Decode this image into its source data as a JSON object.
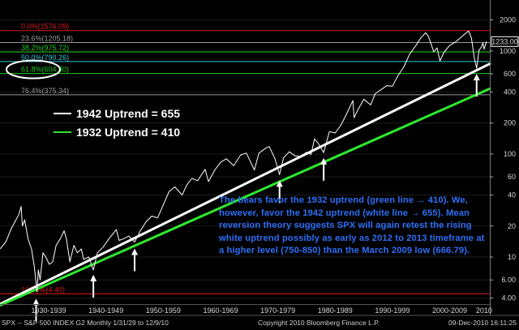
{
  "chart_data": {
    "type": "line",
    "yscale": "log",
    "ylim": [
      3.5,
      2700
    ],
    "xlim": [
      1926,
      2011.5
    ],
    "yticks": [
      {
        "value": 2000,
        "label": "2000"
      },
      {
        "value": 1000,
        "label": "1000"
      },
      {
        "value": 600,
        "label": "600"
      },
      {
        "value": 400,
        "label": "400"
      },
      {
        "value": 200,
        "label": "200"
      },
      {
        "value": 100,
        "label": "100"
      },
      {
        "value": 60,
        "label": "60"
      },
      {
        "value": 40,
        "label": "40"
      },
      {
        "value": 20,
        "label": "20"
      },
      {
        "value": 10,
        "label": "10"
      },
      {
        "value": 6,
        "label": "6.00"
      },
      {
        "value": 4,
        "label": "4.00"
      }
    ],
    "xticks": [
      {
        "x": 1934.5,
        "label": "1930-1939"
      },
      {
        "x": 1944.5,
        "label": "1940-1949"
      },
      {
        "x": 1954.5,
        "label": "1950-1959"
      },
      {
        "x": 1964.5,
        "label": "1960-1969"
      },
      {
        "x": 1974.5,
        "label": "1970-1979"
      },
      {
        "x": 1984.5,
        "label": "1980-1989"
      },
      {
        "x": 1994.5,
        "label": "1990-1999"
      },
      {
        "x": 2004.5,
        "label": "2000-2009"
      },
      {
        "x": 2010.5,
        "label": "2010"
      }
    ],
    "last_price": {
      "value": 1233,
      "label": "1233.00"
    },
    "fib_levels": [
      {
        "label": "0.0%(1576.09)",
        "value": 1576.09,
        "color": "#e01818"
      },
      {
        "label": "23.6%(1205.18)",
        "value": 1205.18,
        "color": "#9a9a9a"
      },
      {
        "label": "38.2%(975.72)",
        "value": 975.72,
        "color": "#1ec81e"
      },
      {
        "label": "50.0%(790.26)",
        "value": 790.26,
        "color": "#36c8d8"
      },
      {
        "label": "61.8%(604.80)",
        "value": 604.8,
        "color": "#1ec81e"
      },
      {
        "label": "76.4%(375.34)",
        "value": 375.34,
        "color": "#9a9a9a"
      },
      {
        "label": "100.0%(4.40)",
        "value": 4.4,
        "color": "#e01818"
      }
    ],
    "trendlines": [
      {
        "name": "1942 Uptrend = 655",
        "color": "#ffffff",
        "start": {
          "x": 1926,
          "y": 3.5
        },
        "end": {
          "x": 2011.5,
          "y": 750
        }
      },
      {
        "name": "1932 Uptrend = 410",
        "color": "#2ee82e",
        "start": {
          "x": 1926,
          "y": 3.4
        },
        "end": {
          "x": 2011.5,
          "y": 430
        }
      }
    ],
    "arrows_at": [
      {
        "x": 1932.3,
        "y": 4.4
      },
      {
        "x": 1942.3,
        "y": 7.5
      },
      {
        "x": 1949.5,
        "y": 13.5
      },
      {
        "x": 1974.8,
        "y": 62
      },
      {
        "x": 1982.5,
        "y": 102
      },
      {
        "x": 2009.2,
        "y": 667
      }
    ],
    "series": [
      {
        "values": [
          [
            1926,
            12
          ],
          [
            1927,
            14
          ],
          [
            1928,
            19
          ],
          [
            1929.3,
            26
          ],
          [
            1929.7,
            31
          ],
          [
            1929.9,
            20
          ],
          [
            1930.3,
            23
          ],
          [
            1930.9,
            15
          ],
          [
            1931.5,
            12
          ],
          [
            1932,
            8
          ],
          [
            1932.45,
            4.6
          ],
          [
            1932.7,
            7.5
          ],
          [
            1933,
            6
          ],
          [
            1933.5,
            11
          ],
          [
            1934,
            10
          ],
          [
            1934.6,
            8.5
          ],
          [
            1935.2,
            9
          ],
          [
            1935.8,
            13
          ],
          [
            1936.5,
            15
          ],
          [
            1937.2,
            18
          ],
          [
            1937.6,
            15
          ],
          [
            1938.2,
            9
          ],
          [
            1938.9,
            13
          ],
          [
            1939.5,
            11
          ],
          [
            1940.2,
            12
          ],
          [
            1940.6,
            9.5
          ],
          [
            1941.5,
            10
          ],
          [
            1942.3,
            7.5
          ],
          [
            1943,
            11
          ],
          [
            1944,
            12.5
          ],
          [
            1945,
            15
          ],
          [
            1946.3,
            18.5
          ],
          [
            1946.8,
            14.5
          ],
          [
            1947.5,
            15
          ],
          [
            1948.5,
            16
          ],
          [
            1949.5,
            14
          ],
          [
            1950.5,
            18
          ],
          [
            1951.5,
            22
          ],
          [
            1952.5,
            25
          ],
          [
            1953.5,
            24
          ],
          [
            1954.5,
            32
          ],
          [
            1955.5,
            43
          ],
          [
            1956.5,
            48
          ],
          [
            1957.8,
            40
          ],
          [
            1958.6,
            50
          ],
          [
            1959.5,
            58
          ],
          [
            1960.5,
            55
          ],
          [
            1961.8,
            71
          ],
          [
            1962.4,
            54
          ],
          [
            1963.5,
            70
          ],
          [
            1964.5,
            83
          ],
          [
            1965.5,
            90
          ],
          [
            1966.8,
            77
          ],
          [
            1968,
            98
          ],
          [
            1969,
            102
          ],
          [
            1970.4,
            70
          ],
          [
            1971.2,
            102
          ],
          [
            1972.5,
            115
          ],
          [
            1973,
            118
          ],
          [
            1974,
            90
          ],
          [
            1974.8,
            63
          ],
          [
            1975.5,
            92
          ],
          [
            1976.5,
            105
          ],
          [
            1977.5,
            96
          ],
          [
            1978.5,
            95
          ],
          [
            1979.5,
            104
          ],
          [
            1980.3,
            99
          ],
          [
            1980.9,
            140
          ],
          [
            1981.5,
            128
          ],
          [
            1982.5,
            103
          ],
          [
            1983.5,
            165
          ],
          [
            1984.5,
            160
          ],
          [
            1985.5,
            190
          ],
          [
            1986.5,
            245
          ],
          [
            1987.6,
            330
          ],
          [
            1987.8,
            225
          ],
          [
            1988.5,
            270
          ],
          [
            1989.5,
            340
          ],
          [
            1990.7,
            300
          ],
          [
            1991.5,
            385
          ],
          [
            1992.5,
            420
          ],
          [
            1993.5,
            460
          ],
          [
            1994.5,
            455
          ],
          [
            1995.5,
            580
          ],
          [
            1996.5,
            700
          ],
          [
            1997.5,
            930
          ],
          [
            1998.5,
            1110
          ],
          [
            1999.5,
            1350
          ],
          [
            2000.3,
            1500
          ],
          [
            2000.8,
            1380
          ],
          [
            2001.3,
            1150
          ],
          [
            2001.7,
            980
          ],
          [
            2002.3,
            1070
          ],
          [
            2002.8,
            800
          ],
          [
            2003.5,
            970
          ],
          [
            2004.5,
            1130
          ],
          [
            2005.5,
            1220
          ],
          [
            2006.5,
            1360
          ],
          [
            2007.5,
            1520
          ],
          [
            2007.8,
            1560
          ],
          [
            2008.3,
            1330
          ],
          [
            2008.8,
            850
          ],
          [
            2009.2,
            680
          ],
          [
            2009.6,
            1010
          ],
          [
            2010.1,
            1110
          ],
          [
            2010.3,
            1200
          ],
          [
            2010.5,
            1040
          ],
          [
            2010.8,
            1180
          ],
          [
            2010.94,
            1233
          ]
        ]
      }
    ]
  },
  "legend": [
    {
      "label": "1942 Uptrend = 655",
      "color": "#ffffff"
    },
    {
      "label": "1932 Uptrend = 410",
      "color": "#2ee82e"
    }
  ],
  "annotation": "The bears favor the 1932 uptrend (green line → 410).  We, however, favor the 1942 uptrend (white line → 655).  Mean reversion theory suggests SPX will again retest the rising white uptrend possibly as early as 2012 to 2013 timeframe at a higher level (750-850) than the March 2009 low (666.79).",
  "footer": {
    "left": "SPX -- S&P 500 INDEX    G2  Monthly  1/31/29 to 12/9/10",
    "center": "Copyright 2010 Bloomberg Finance L.P.",
    "right": "09-Dec-2010 16:11:25"
  },
  "colors": {
    "background": "#000000",
    "price_line": "#ffffff",
    "white_trend": "#ffffff",
    "green_trend": "#2ee82e",
    "annotation": "#2d6ff7",
    "highlight_ellipse": "#ffffff",
    "last_price_box": "#ffffff",
    "arrow": "#ffffff"
  }
}
